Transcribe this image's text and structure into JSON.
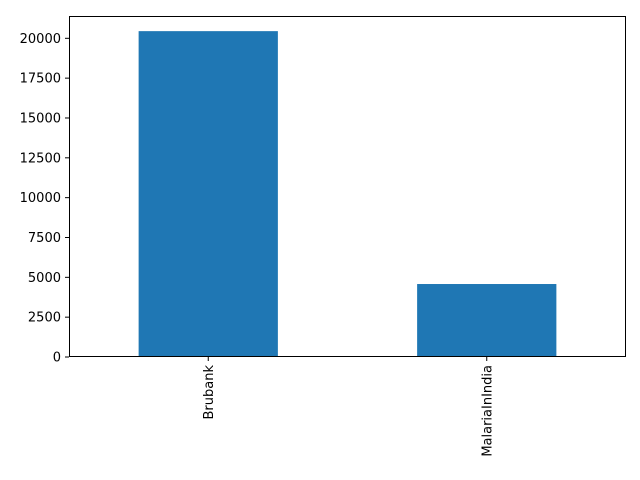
{
  "chart_data": {
    "type": "bar",
    "categories": [
      "Brubank",
      "MalariaInIndia"
    ],
    "values": [
      20450,
      4580
    ],
    "ylim": [
      0,
      21400
    ],
    "yticks": [
      0,
      2500,
      5000,
      7500,
      10000,
      12500,
      15000,
      17500,
      20000
    ],
    "grid": false,
    "legend": "none",
    "colors": {
      "bar": "#1f77b4",
      "axis": "#000000",
      "background": "#ffffff"
    }
  }
}
